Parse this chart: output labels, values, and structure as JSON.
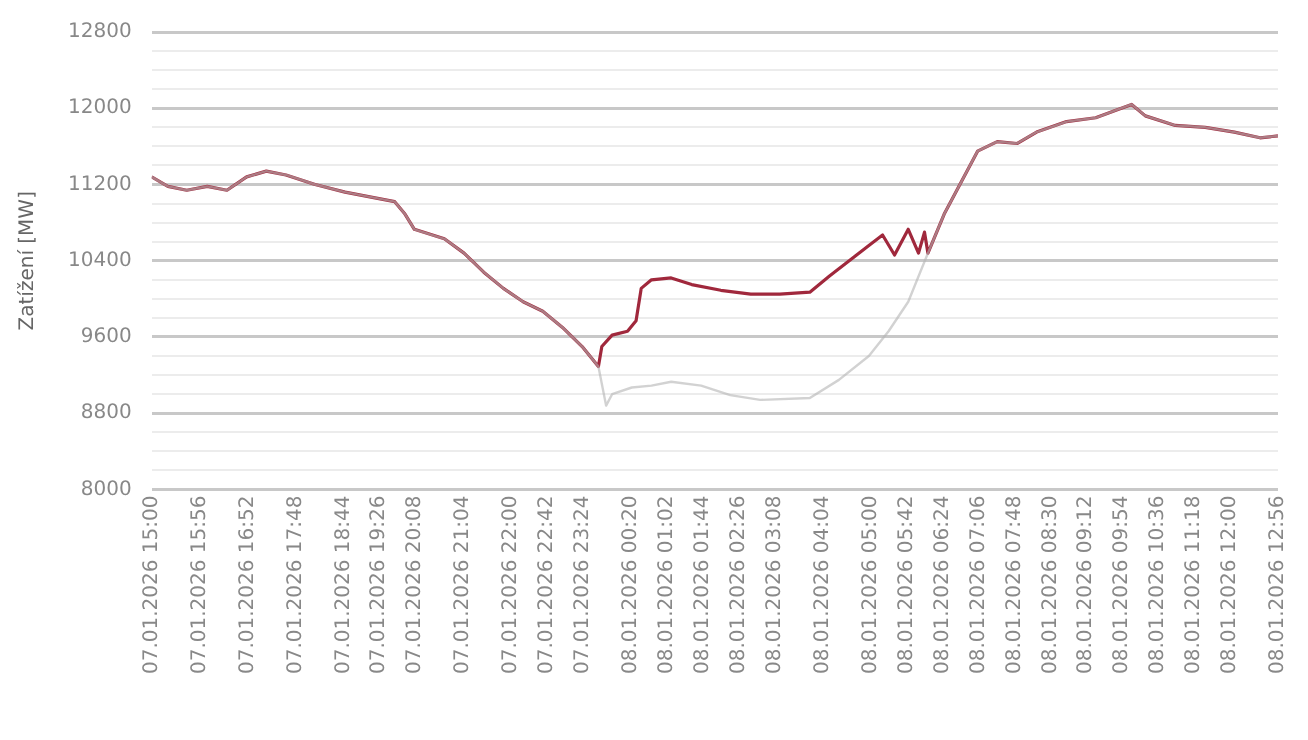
{
  "chart_data": {
    "type": "line",
    "ylabel": "Zatížení [MW]",
    "xlim": [
      "2026-01-07T15:00",
      "2026-01-08T12:56"
    ],
    "ylim": [
      8000,
      12800
    ],
    "xticks": [
      {
        "value": "2026-01-07T15:00",
        "label": "07.01.2026 15:00"
      },
      {
        "value": "2026-01-07T15:56",
        "label": "07.01.2026 15:56"
      },
      {
        "value": "2026-01-07T16:52",
        "label": "07.01.2026 16:52"
      },
      {
        "value": "2026-01-07T17:48",
        "label": "07.01.2026 17:48"
      },
      {
        "value": "2026-01-07T18:44",
        "label": "07.01.2026 18:44"
      },
      {
        "value": "2026-01-07T19:26",
        "label": "07.01.2026 19:26"
      },
      {
        "value": "2026-01-07T20:08",
        "label": "07.01.2026 20:08"
      },
      {
        "value": "2026-01-07T21:04",
        "label": "07.01.2026 21:04"
      },
      {
        "value": "2026-01-07T22:00",
        "label": "07.01.2026 22:00"
      },
      {
        "value": "2026-01-07T22:42",
        "label": "07.01.2026 22:42"
      },
      {
        "value": "2026-01-07T23:24",
        "label": "07.01.2026 23:24"
      },
      {
        "value": "2026-01-08T00:20",
        "label": "08.01.2026 00:20"
      },
      {
        "value": "2026-01-08T01:02",
        "label": "08.01.2026 01:02"
      },
      {
        "value": "2026-01-08T01:44",
        "label": "08.01.2026 01:44"
      },
      {
        "value": "2026-01-08T02:26",
        "label": "08.01.2026 02:26"
      },
      {
        "value": "2026-01-08T03:08",
        "label": "08.01.2026 03:08"
      },
      {
        "value": "2026-01-08T04:04",
        "label": "08.01.2026 04:04"
      },
      {
        "value": "2026-01-08T05:00",
        "label": "08.01.2026 05:00"
      },
      {
        "value": "2026-01-08T05:42",
        "label": "08.01.2026 05:42"
      },
      {
        "value": "2026-01-08T06:24",
        "label": "08.01.2026 06:24"
      },
      {
        "value": "2026-01-08T07:06",
        "label": "08.01.2026 07:06"
      },
      {
        "value": "2026-01-08T07:48",
        "label": "08.01.2026 07:48"
      },
      {
        "value": "2026-01-08T08:30",
        "label": "08.01.2026 08:30"
      },
      {
        "value": "2026-01-08T09:12",
        "label": "08.01.2026 09:12"
      },
      {
        "value": "2026-01-08T09:54",
        "label": "08.01.2026 09:54"
      },
      {
        "value": "2026-01-08T10:36",
        "label": "08.01.2026 10:36"
      },
      {
        "value": "2026-01-08T11:18",
        "label": "08.01.2026 11:18"
      },
      {
        "value": "2026-01-08T12:00",
        "label": "08.01.2026 12:00"
      },
      {
        "value": "2026-01-08T12:56",
        "label": "08.01.2026 12:56"
      }
    ],
    "yticks": [
      8000,
      {
        "value": 8200,
        "label": null
      },
      {
        "value": 8400,
        "label": null
      },
      {
        "value": 8600,
        "label": null
      },
      8800,
      {
        "value": 9000,
        "label": null
      },
      {
        "value": 9200,
        "label": null
      },
      {
        "value": 9400,
        "label": null
      },
      9600,
      {
        "value": 9800,
        "label": null
      },
      {
        "value": 10000,
        "label": null
      },
      {
        "value": 10200,
        "label": null
      },
      10400,
      {
        "value": 10600,
        "label": null
      },
      {
        "value": 10800,
        "label": null
      },
      {
        "value": 11000,
        "label": null
      },
      11200,
      {
        "value": 11400,
        "label": null
      },
      {
        "value": 11600,
        "label": null
      },
      {
        "value": 11800,
        "label": null
      },
      12000,
      {
        "value": 12200,
        "label": null
      },
      {
        "value": 12400,
        "label": null
      },
      {
        "value": 12600,
        "label": null
      },
      12800
    ],
    "grid": "y",
    "legend": false,
    "marker": "none",
    "line_style": "solid",
    "series": [
      {
        "color": "#a0283c",
        "x": [
          "2026-01-07T15:00",
          "2026-01-07T15:19",
          "2026-01-07T15:41",
          "2026-01-07T16:05",
          "2026-01-07T16:28",
          "2026-01-07T16:51",
          "2026-01-07T17:14",
          "2026-01-07T17:37",
          "2026-01-07T18:11",
          "2026-01-07T18:46",
          "2026-01-07T19:21",
          "2026-01-07T19:44",
          "2026-01-07T19:56",
          "2026-01-07T20:07",
          "2026-01-07T20:42",
          "2026-01-07T21:05",
          "2026-01-07T21:28",
          "2026-01-07T21:51",
          "2026-01-07T22:14",
          "2026-01-07T22:37",
          "2026-01-07T23:00",
          "2026-01-07T23:23",
          "2026-01-07T23:42",
          "2026-01-07T23:46",
          "2026-01-07T23:58",
          "2026-01-08T00:16",
          "2026-01-08T00:26",
          "2026-01-08T00:32",
          "2026-01-08T00:44",
          "2026-01-08T01:07",
          "2026-01-08T01:31",
          "2026-01-08T02:05",
          "2026-01-08T02:40",
          "2026-01-08T03:14",
          "2026-01-08T03:49",
          "2026-01-08T04:12",
          "2026-01-08T04:35",
          "2026-01-08T04:58",
          "2026-01-08T05:14",
          "2026-01-08T05:28",
          "2026-01-08T05:44",
          "2026-01-08T05:56",
          "2026-01-08T06:03",
          "2026-01-08T06:07",
          "2026-01-08T06:26",
          "2026-01-08T06:42",
          "2026-01-08T07:05",
          "2026-01-08T07:28",
          "2026-01-08T07:51",
          "2026-01-08T08:14",
          "2026-01-08T08:49",
          "2026-01-08T09:23",
          "2026-01-08T09:53",
          "2026-01-08T10:05",
          "2026-01-08T10:21",
          "2026-01-08T10:56",
          "2026-01-08T11:31",
          "2026-01-08T12:05",
          "2026-01-08T12:35",
          "2026-01-08T12:56"
        ],
        "values": [
          11280,
          11180,
          11140,
          11180,
          11140,
          11280,
          11340,
          11300,
          11200,
          11120,
          11060,
          11020,
          10890,
          10730,
          10630,
          10480,
          10280,
          10110,
          9970,
          9870,
          9700,
          9500,
          9290,
          9500,
          9620,
          9660,
          9770,
          10110,
          10200,
          10220,
          10150,
          10090,
          10050,
          10050,
          10070,
          10240,
          10400,
          10560,
          10670,
          10460,
          10730,
          10480,
          10700,
          10480,
          10890,
          11160,
          11550,
          11650,
          11630,
          11750,
          11860,
          11900,
          12000,
          12040,
          11920,
          11820,
          11800,
          11750,
          11690,
          11710
        ]
      },
      {
        "color": "#b4b4b4",
        "x": [
          "2026-01-07T15:00",
          "2026-01-07T15:19",
          "2026-01-07T15:41",
          "2026-01-07T16:05",
          "2026-01-07T16:28",
          "2026-01-07T16:51",
          "2026-01-07T17:14",
          "2026-01-07T17:37",
          "2026-01-07T18:11",
          "2026-01-07T18:46",
          "2026-01-07T19:21",
          "2026-01-07T19:44",
          "2026-01-07T19:56",
          "2026-01-07T20:07",
          "2026-01-07T20:42",
          "2026-01-07T21:05",
          "2026-01-07T21:28",
          "2026-01-07T21:51",
          "2026-01-07T22:14",
          "2026-01-07T22:37",
          "2026-01-07T23:00",
          "2026-01-07T23:23",
          "2026-01-07T23:42",
          "2026-01-07T23:51",
          "2026-01-07T23:58",
          "2026-01-08T00:21",
          "2026-01-08T00:44",
          "2026-01-08T01:07",
          "2026-01-08T01:42",
          "2026-01-08T02:16",
          "2026-01-08T02:51",
          "2026-01-08T03:49",
          "2026-01-08T04:23",
          "2026-01-08T04:58",
          "2026-01-08T05:21",
          "2026-01-08T05:44",
          "2026-01-08T06:07",
          "2026-01-08T06:26",
          "2026-01-08T06:42",
          "2026-01-08T07:05",
          "2026-01-08T07:28",
          "2026-01-08T07:51",
          "2026-01-08T08:14",
          "2026-01-08T08:49",
          "2026-01-08T09:23",
          "2026-01-08T09:53",
          "2026-01-08T10:05",
          "2026-01-08T10:21",
          "2026-01-08T10:56",
          "2026-01-08T11:31",
          "2026-01-08T12:05",
          "2026-01-08T12:35",
          "2026-01-08T12:56"
        ],
        "values": [
          11280,
          11180,
          11140,
          11180,
          11140,
          11280,
          11340,
          11300,
          11200,
          11120,
          11060,
          11020,
          10890,
          10730,
          10630,
          10480,
          10280,
          10110,
          9970,
          9870,
          9700,
          9500,
          9290,
          8880,
          9000,
          9070,
          9090,
          9130,
          9090,
          8990,
          8940,
          8960,
          9150,
          9400,
          9660,
          9970,
          10480,
          10890,
          11160,
          11550,
          11650,
          11630,
          11750,
          11860,
          11900,
          12000,
          12040,
          11920,
          11820,
          11800,
          11750,
          11690,
          11710
        ]
      }
    ]
  }
}
